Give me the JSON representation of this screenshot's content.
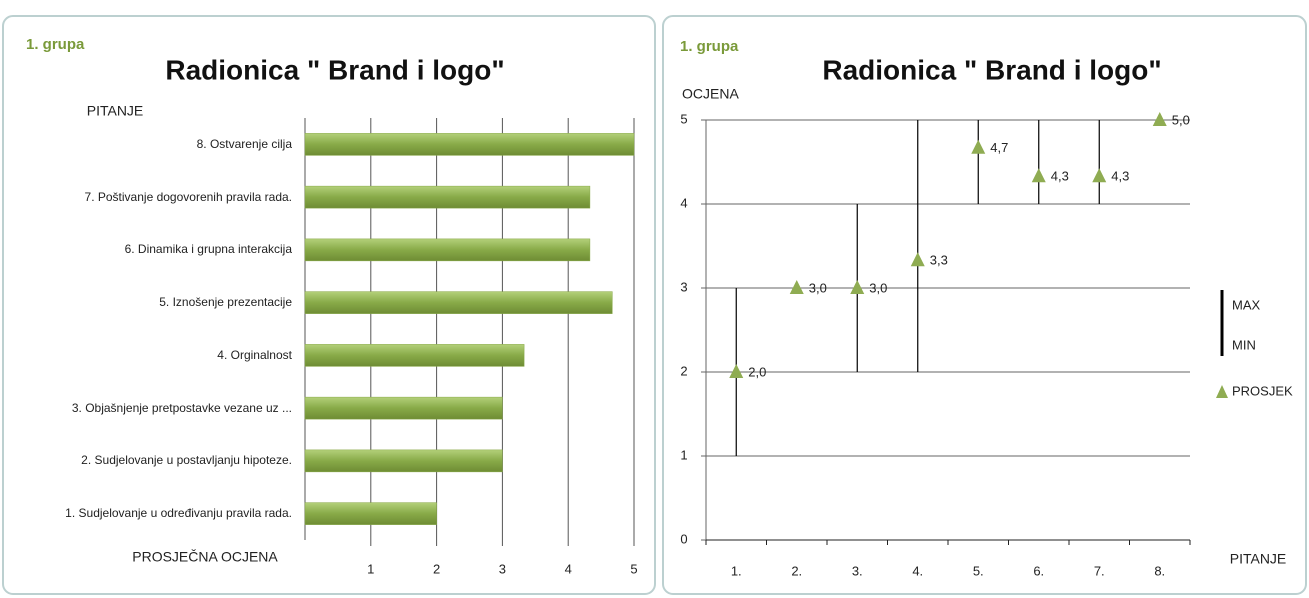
{
  "chart_data": [
    {
      "type": "bar",
      "orientation": "horizontal",
      "annotation": "1. grupa",
      "title": "Radionica \" Brand i logo\"",
      "y_label": "PITANJE",
      "x_label": "PROSJEČNA OCJENA",
      "categories": [
        "1. Sudjelovanje u određivanju pravila rada.",
        "2. Sudjelovanje u postavljanju hipoteze.",
        "3. Objašnjenje pretpostavke  vezane uz ...",
        "4. Orginalnost",
        "5. Iznošenje prezentacije",
        "6. Dinamika i grupna interakcija",
        "7. Poštivanje dogovorenih pravila rada.",
        "8. Ostvarenje cilja"
      ],
      "values": [
        2,
        3,
        3,
        3.33,
        4.67,
        4.33,
        4.33,
        5
      ],
      "color": "#86a845",
      "xlim": [
        0,
        5
      ],
      "xticks": [
        1,
        2,
        3,
        4,
        5
      ],
      "grid": true
    },
    {
      "type": "high-low",
      "annotation": "1. grupa",
      "title": "Radionica \" Brand i logo\"",
      "y_label": "OCJENA",
      "x_label": "PITANJE",
      "categories": [
        "1.",
        "2.",
        "3.",
        "4.",
        "5.",
        "6.",
        "7.",
        "8."
      ],
      "series": [
        {
          "name": "MAX",
          "color": "#000000",
          "values": [
            3,
            3,
            4,
            5,
            5,
            5,
            5,
            5
          ]
        },
        {
          "name": "MIN",
          "color": "#000000",
          "values": [
            1,
            3,
            2,
            2,
            4,
            4,
            4,
            5
          ]
        },
        {
          "name": "PROSJEK",
          "color": "#8fac52",
          "values": [
            2,
            3,
            3,
            3.33,
            4.67,
            4.33,
            4.33,
            5
          ],
          "value_labels": [
            "2,0",
            "3,0",
            "3,0",
            "3,3",
            "4,7",
            "4,3",
            "4,3",
            "5,0"
          ]
        }
      ],
      "ylim": [
        0,
        5
      ],
      "yticks": [
        0,
        1,
        2,
        3,
        4,
        5
      ],
      "grid": true,
      "legend": "right"
    }
  ]
}
